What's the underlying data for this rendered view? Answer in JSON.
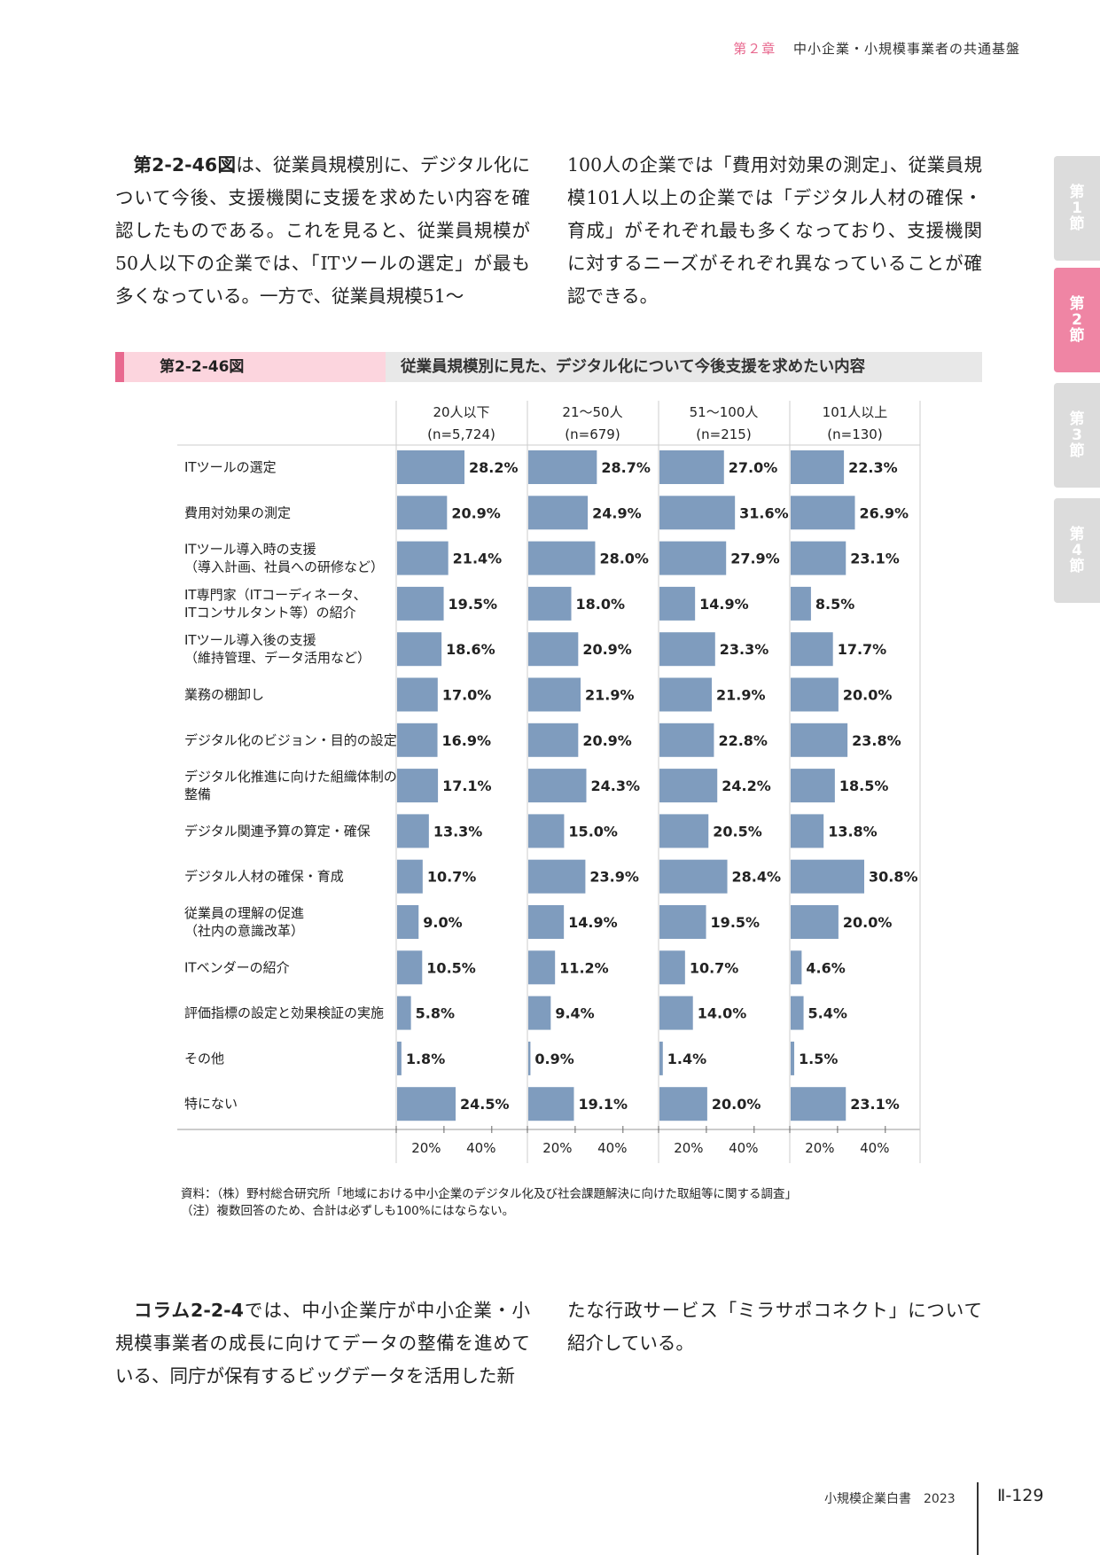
{
  "header": {
    "chapter": "第２章",
    "title": "中小企業・小規模事業者の共通基盤"
  },
  "side_tabs": [
    {
      "label": [
        "第",
        "1",
        "節"
      ],
      "active": false
    },
    {
      "label": [
        "第",
        "2",
        "節"
      ],
      "active": true
    },
    {
      "label": [
        "第",
        "3",
        "節"
      ],
      "active": false
    },
    {
      "label": [
        "第",
        "4",
        "節"
      ],
      "active": false
    }
  ],
  "intro": {
    "left_bold": "第2-2-46図",
    "left_text": "は、従業員規模別に、デジタル化について今後、支援機関に支援を求めたい内容を確認したものである。これを見ると、従業員規模が50人以下の企業では、「ITツールの選定」が最も多くなっている。一方で、従業員規模51〜",
    "right_text": "100人の企業では「費用対効果の測定」、従業員規模101人以上の企業では「デジタル人材の確保・育成」がそれぞれ最も多くなっており、支援機関に対するニーズがそれぞれ異なっていることが確認できる。"
  },
  "figure": {
    "number": "第2-2-46図",
    "title": "従業員規模別に見た、デジタル化について今後支援を求めたい内容"
  },
  "chart_data": {
    "type": "bar",
    "orientation": "horizontal",
    "bar_color": "#7f9cbe",
    "categories": [
      "ITツールの選定",
      "費用対効果の測定",
      "ITツール導入時の支援\n（導入計画、社員への研修など）",
      "IT専門家（ITコーディネータ、\nITコンサルタント等）の紹介",
      "ITツール導入後の支援\n（維持管理、データ活用など）",
      "業務の棚卸し",
      "デジタル化のビジョン・目的の設定",
      "デジタル化推進に向けた組織体制の\n整備",
      "デジタル関連予算の算定・確保",
      "デジタル人材の確保・育成",
      "従業員の理解の促進\n（社内の意識改革）",
      "ITベンダーの紹介",
      "評価指標の設定と効果検証の実施",
      "その他",
      "特にない"
    ],
    "series": [
      {
        "name": "20人以下",
        "n": "(n=5,724)",
        "values": [
          28.2,
          20.9,
          21.4,
          19.5,
          18.6,
          17.0,
          16.9,
          17.1,
          13.3,
          10.7,
          9.0,
          10.5,
          5.8,
          1.8,
          24.5
        ]
      },
      {
        "name": "21〜50人",
        "n": "(n=679)",
        "values": [
          28.7,
          24.9,
          28.0,
          18.0,
          20.9,
          21.9,
          20.9,
          24.3,
          15.0,
          23.9,
          14.9,
          11.2,
          9.4,
          0.9,
          19.1
        ]
      },
      {
        "name": "51〜100人",
        "n": "(n=215)",
        "values": [
          27.0,
          31.6,
          27.9,
          14.9,
          23.3,
          21.9,
          22.8,
          24.2,
          20.5,
          28.4,
          19.5,
          10.7,
          14.0,
          1.4,
          20.0
        ]
      },
      {
        "name": "101人以上",
        "n": "(n=130)",
        "values": [
          22.3,
          26.9,
          23.1,
          8.5,
          17.7,
          20.0,
          23.8,
          18.5,
          13.8,
          30.8,
          20.0,
          4.6,
          5.4,
          1.5,
          23.1
        ]
      }
    ],
    "xlim": [
      0,
      60
    ],
    "tick_labels": [
      "20%",
      "40%"
    ],
    "tick_values": [
      20,
      40
    ]
  },
  "notes": {
    "source": "資料：（株）野村総合研究所「地域における中小企業のデジタル化及び社会課題解決に向けた取組等に関する調査」",
    "note": "（注）複数回答のため、合計は必ずしも100%にはならない。"
  },
  "outro": {
    "left_bold": "コラム2-2-4",
    "left_text": "では、中小企業庁が中小企業・小規模事業者の成長に向けてデータの整備を進めている、同庁が保有するビッグデータを活用した新",
    "right_text": "たな行政サービス「ミラサポコネクト」について紹介している。"
  },
  "footer": {
    "book": "小規模企業白書　2023",
    "page": "Ⅱ-129"
  }
}
